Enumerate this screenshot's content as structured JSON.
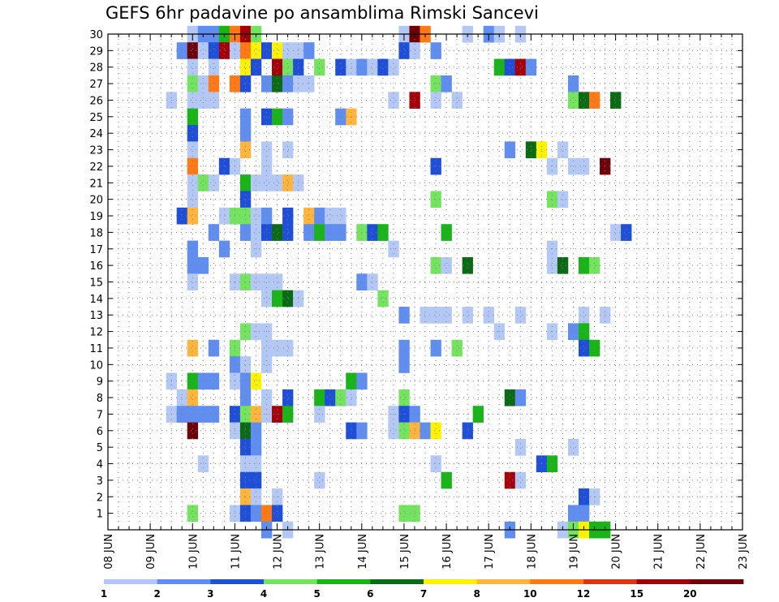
{
  "title": "GEFS 6hr padavine po ansamblima Rimski Sancevi",
  "chart_data": {
    "type": "heatmap",
    "title": "GEFS 6hr padavine po ansamblima Rimski Sancevi",
    "xlabel": "",
    "ylabel": "",
    "x_tick_labels": [
      "08 JUN",
      "09 JUN",
      "10 JUN",
      "11 JUN",
      "12 JUN",
      "13 JUN",
      "14 JUN",
      "15 JUN",
      "16 JUN",
      "17 JUN",
      "18 JUN",
      "19 JUN",
      "20 JUN",
      "21 JUN",
      "22 JUN",
      "23 JUN"
    ],
    "x_step_unit": "6h",
    "y_tick_labels": [
      "1",
      "2",
      "3",
      "4",
      "5",
      "6",
      "7",
      "8",
      "9",
      "10",
      "11",
      "12",
      "13",
      "14",
      "15",
      "16",
      "17",
      "18",
      "19",
      "20",
      "21",
      "22",
      "23",
      "24",
      "25",
      "26",
      "27",
      "28",
      "29",
      "30"
    ],
    "ylim": [
      0,
      30
    ],
    "grid": true,
    "colorbar": {
      "boundaries": [
        "1",
        "2",
        "3",
        "4",
        "5",
        "6",
        "7",
        "8",
        "10",
        "12",
        "15",
        "20"
      ],
      "colors": [
        "#b4c8f5",
        "#5f8ef0",
        "#1f4fd8",
        "#74e35f",
        "#18b418",
        "#0b6b14",
        "#fff200",
        "#ffb43c",
        "#ff7a14",
        "#e03214",
        "#a5000a",
        "#6e000a"
      ]
    },
    "cells": [
      [
        8,
        30,
        1
      ],
      [
        9,
        30,
        2
      ],
      [
        10,
        30,
        2
      ],
      [
        11,
        30,
        5
      ],
      [
        12,
        30,
        9
      ],
      [
        13,
        30,
        11
      ],
      [
        14,
        30,
        4
      ],
      [
        28,
        30,
        1
      ],
      [
        29,
        30,
        12
      ],
      [
        30,
        30,
        9
      ],
      [
        34,
        30,
        1
      ],
      [
        36,
        30,
        2
      ],
      [
        37,
        30,
        1
      ],
      [
        39,
        30,
        1
      ],
      [
        7,
        29,
        2
      ],
      [
        8,
        29,
        12
      ],
      [
        9,
        29,
        1
      ],
      [
        10,
        29,
        3
      ],
      [
        11,
        29,
        11
      ],
      [
        12,
        29,
        1
      ],
      [
        13,
        29,
        9
      ],
      [
        14,
        29,
        7
      ],
      [
        15,
        29,
        3
      ],
      [
        16,
        29,
        7
      ],
      [
        17,
        29,
        1
      ],
      [
        18,
        29,
        1
      ],
      [
        19,
        29,
        2
      ],
      [
        28,
        29,
        3
      ],
      [
        29,
        29,
        1
      ],
      [
        31,
        29,
        2
      ],
      [
        8,
        28,
        1
      ],
      [
        10,
        28,
        1
      ],
      [
        13,
        28,
        7
      ],
      [
        14,
        28,
        3
      ],
      [
        16,
        28,
        11
      ],
      [
        17,
        28,
        4
      ],
      [
        18,
        28,
        3
      ],
      [
        20,
        28,
        4
      ],
      [
        22,
        28,
        3
      ],
      [
        23,
        28,
        1
      ],
      [
        24,
        28,
        2
      ],
      [
        25,
        28,
        1
      ],
      [
        26,
        28,
        3
      ],
      [
        27,
        28,
        1
      ],
      [
        37,
        28,
        5
      ],
      [
        38,
        28,
        3
      ],
      [
        39,
        28,
        11
      ],
      [
        40,
        28,
        2
      ],
      [
        8,
        27,
        4
      ],
      [
        9,
        27,
        1
      ],
      [
        10,
        27,
        9
      ],
      [
        12,
        27,
        9
      ],
      [
        13,
        27,
        3
      ],
      [
        15,
        27,
        2
      ],
      [
        16,
        27,
        6
      ],
      [
        17,
        27,
        2
      ],
      [
        18,
        27,
        1
      ],
      [
        19,
        27,
        1
      ],
      [
        31,
        27,
        4
      ],
      [
        32,
        27,
        2
      ],
      [
        44,
        27,
        2
      ],
      [
        6,
        26,
        1
      ],
      [
        8,
        26,
        1
      ],
      [
        9,
        26,
        1
      ],
      [
        10,
        26,
        1
      ],
      [
        27,
        26,
        1
      ],
      [
        29,
        26,
        11
      ],
      [
        31,
        26,
        1
      ],
      [
        33,
        26,
        1
      ],
      [
        44,
        26,
        4
      ],
      [
        45,
        26,
        6
      ],
      [
        46,
        26,
        9
      ],
      [
        48,
        26,
        6
      ],
      [
        8,
        25,
        5
      ],
      [
        13,
        25,
        2
      ],
      [
        15,
        25,
        3
      ],
      [
        16,
        25,
        5
      ],
      [
        17,
        25,
        2
      ],
      [
        22,
        25,
        2
      ],
      [
        23,
        25,
        8
      ],
      [
        8,
        24,
        3
      ],
      [
        13,
        24,
        2
      ],
      [
        8,
        23,
        1
      ],
      [
        13,
        23,
        8
      ],
      [
        15,
        23,
        1
      ],
      [
        17,
        23,
        1
      ],
      [
        38,
        23,
        2
      ],
      [
        40,
        23,
        6
      ],
      [
        41,
        23,
        7
      ],
      [
        43,
        23,
        1
      ],
      [
        8,
        22,
        9
      ],
      [
        11,
        22,
        3
      ],
      [
        12,
        22,
        1
      ],
      [
        15,
        22,
        1
      ],
      [
        31,
        22,
        3
      ],
      [
        42,
        22,
        1
      ],
      [
        44,
        22,
        1
      ],
      [
        45,
        22,
        1
      ],
      [
        47,
        22,
        12
      ],
      [
        8,
        21,
        1
      ],
      [
        9,
        21,
        4
      ],
      [
        10,
        21,
        1
      ],
      [
        13,
        21,
        5
      ],
      [
        14,
        21,
        1
      ],
      [
        15,
        21,
        1
      ],
      [
        16,
        21,
        1
      ],
      [
        17,
        21,
        8
      ],
      [
        18,
        21,
        1
      ],
      [
        8,
        20,
        1
      ],
      [
        13,
        20,
        3
      ],
      [
        31,
        20,
        4
      ],
      [
        42,
        20,
        4
      ],
      [
        43,
        20,
        1
      ],
      [
        7,
        19,
        3
      ],
      [
        8,
        19,
        8
      ],
      [
        11,
        19,
        1
      ],
      [
        12,
        19,
        4
      ],
      [
        13,
        19,
        4
      ],
      [
        14,
        19,
        1
      ],
      [
        15,
        19,
        2
      ],
      [
        17,
        19,
        3
      ],
      [
        19,
        19,
        8
      ],
      [
        20,
        19,
        2
      ],
      [
        21,
        19,
        1
      ],
      [
        22,
        19,
        1
      ],
      [
        10,
        18,
        2
      ],
      [
        13,
        18,
        2
      ],
      [
        14,
        18,
        1
      ],
      [
        15,
        18,
        3
      ],
      [
        16,
        18,
        6
      ],
      [
        17,
        18,
        3
      ],
      [
        19,
        18,
        2
      ],
      [
        20,
        18,
        5
      ],
      [
        21,
        18,
        2
      ],
      [
        22,
        18,
        2
      ],
      [
        24,
        18,
        4
      ],
      [
        25,
        18,
        3
      ],
      [
        26,
        18,
        5
      ],
      [
        32,
        18,
        5
      ],
      [
        48,
        18,
        1
      ],
      [
        49,
        18,
        3
      ],
      [
        8,
        17,
        2
      ],
      [
        11,
        17,
        2
      ],
      [
        14,
        17,
        1
      ],
      [
        27,
        17,
        1
      ],
      [
        42,
        17,
        1
      ],
      [
        8,
        16,
        2
      ],
      [
        9,
        16,
        2
      ],
      [
        31,
        16,
        4
      ],
      [
        32,
        16,
        1
      ],
      [
        34,
        16,
        6
      ],
      [
        42,
        16,
        1
      ],
      [
        43,
        16,
        6
      ],
      [
        45,
        16,
        5
      ],
      [
        46,
        16,
        4
      ],
      [
        8,
        15,
        1
      ],
      [
        12,
        15,
        1
      ],
      [
        13,
        15,
        4
      ],
      [
        14,
        15,
        1
      ],
      [
        15,
        15,
        1
      ],
      [
        16,
        15,
        1
      ],
      [
        24,
        15,
        2
      ],
      [
        25,
        15,
        1
      ],
      [
        15,
        14,
        1
      ],
      [
        16,
        14,
        5
      ],
      [
        17,
        14,
        6
      ],
      [
        18,
        14,
        1
      ],
      [
        28,
        13,
        2
      ],
      [
        30,
        13,
        1
      ],
      [
        31,
        13,
        1
      ],
      [
        32,
        13,
        1
      ],
      [
        34,
        13,
        1
      ],
      [
        36,
        13,
        1
      ],
      [
        39,
        13,
        1
      ],
      [
        45,
        13,
        1
      ],
      [
        47,
        13,
        1
      ],
      [
        26,
        14,
        4
      ],
      [
        13,
        12,
        4
      ],
      [
        14,
        12,
        1
      ],
      [
        15,
        12,
        1
      ],
      [
        37,
        12,
        1
      ],
      [
        42,
        12,
        1
      ],
      [
        44,
        12,
        2
      ],
      [
        45,
        12,
        5
      ],
      [
        8,
        11,
        8
      ],
      [
        10,
        11,
        2
      ],
      [
        12,
        11,
        4
      ],
      [
        15,
        11,
        1
      ],
      [
        16,
        11,
        1
      ],
      [
        17,
        11,
        1
      ],
      [
        28,
        11,
        2
      ],
      [
        31,
        11,
        2
      ],
      [
        33,
        11,
        4
      ],
      [
        45,
        11,
        3
      ],
      [
        46,
        11,
        5
      ],
      [
        12,
        10,
        2
      ],
      [
        13,
        10,
        1
      ],
      [
        15,
        10,
        1
      ],
      [
        28,
        10,
        2
      ],
      [
        6,
        9,
        1
      ],
      [
        8,
        9,
        5
      ],
      [
        9,
        9,
        2
      ],
      [
        10,
        9,
        2
      ],
      [
        12,
        9,
        1
      ],
      [
        13,
        9,
        2
      ],
      [
        14,
        9,
        7
      ],
      [
        23,
        9,
        5
      ],
      [
        24,
        9,
        2
      ],
      [
        7,
        8,
        1
      ],
      [
        8,
        8,
        8
      ],
      [
        13,
        8,
        2
      ],
      [
        15,
        8,
        1
      ],
      [
        17,
        8,
        3
      ],
      [
        20,
        8,
        5
      ],
      [
        21,
        8,
        3
      ],
      [
        22,
        8,
        4
      ],
      [
        23,
        8,
        1
      ],
      [
        28,
        8,
        4
      ],
      [
        38,
        8,
        6
      ],
      [
        39,
        8,
        2
      ],
      [
        6,
        7,
        1
      ],
      [
        7,
        7,
        2
      ],
      [
        8,
        7,
        2
      ],
      [
        9,
        7,
        2
      ],
      [
        10,
        7,
        2
      ],
      [
        12,
        7,
        3
      ],
      [
        13,
        7,
        4
      ],
      [
        14,
        7,
        8
      ],
      [
        15,
        7,
        1
      ],
      [
        16,
        7,
        11
      ],
      [
        17,
        7,
        5
      ],
      [
        20,
        7,
        1
      ],
      [
        27,
        7,
        1
      ],
      [
        28,
        7,
        3
      ],
      [
        29,
        7,
        2
      ],
      [
        35,
        7,
        5
      ],
      [
        8,
        6,
        12
      ],
      [
        12,
        6,
        1
      ],
      [
        13,
        6,
        6
      ],
      [
        14,
        6,
        2
      ],
      [
        23,
        6,
        3
      ],
      [
        24,
        6,
        2
      ],
      [
        27,
        6,
        1
      ],
      [
        28,
        6,
        4
      ],
      [
        29,
        6,
        8
      ],
      [
        30,
        6,
        2
      ],
      [
        31,
        6,
        7
      ],
      [
        34,
        6,
        3
      ],
      [
        13,
        5,
        3
      ],
      [
        14,
        5,
        2
      ],
      [
        39,
        5,
        1
      ],
      [
        44,
        5,
        1
      ],
      [
        9,
        4,
        1
      ],
      [
        13,
        4,
        1
      ],
      [
        14,
        4,
        1
      ],
      [
        31,
        4,
        1
      ],
      [
        41,
        4,
        3
      ],
      [
        42,
        4,
        5
      ],
      [
        13,
        3,
        3
      ],
      [
        14,
        3,
        3
      ],
      [
        20,
        3,
        1
      ],
      [
        32,
        3,
        5
      ],
      [
        38,
        3,
        11
      ],
      [
        39,
        3,
        1
      ],
      [
        13,
        2,
        8
      ],
      [
        14,
        2,
        1
      ],
      [
        16,
        2,
        1
      ],
      [
        45,
        2,
        3
      ],
      [
        46,
        2,
        1
      ],
      [
        8,
        1,
        4
      ],
      [
        12,
        1,
        1
      ],
      [
        13,
        1,
        3
      ],
      [
        14,
        1,
        2
      ],
      [
        15,
        1,
        9
      ],
      [
        16,
        1,
        3
      ],
      [
        28,
        1,
        4
      ],
      [
        29,
        1,
        4
      ],
      [
        44,
        1,
        2
      ],
      [
        45,
        1,
        2
      ],
      [
        15,
        0,
        2
      ],
      [
        17,
        0,
        1
      ],
      [
        38,
        0,
        2
      ],
      [
        43,
        0,
        1
      ],
      [
        44,
        0,
        4
      ],
      [
        45,
        0,
        7
      ],
      [
        46,
        0,
        5
      ],
      [
        47,
        0,
        5
      ]
    ]
  }
}
